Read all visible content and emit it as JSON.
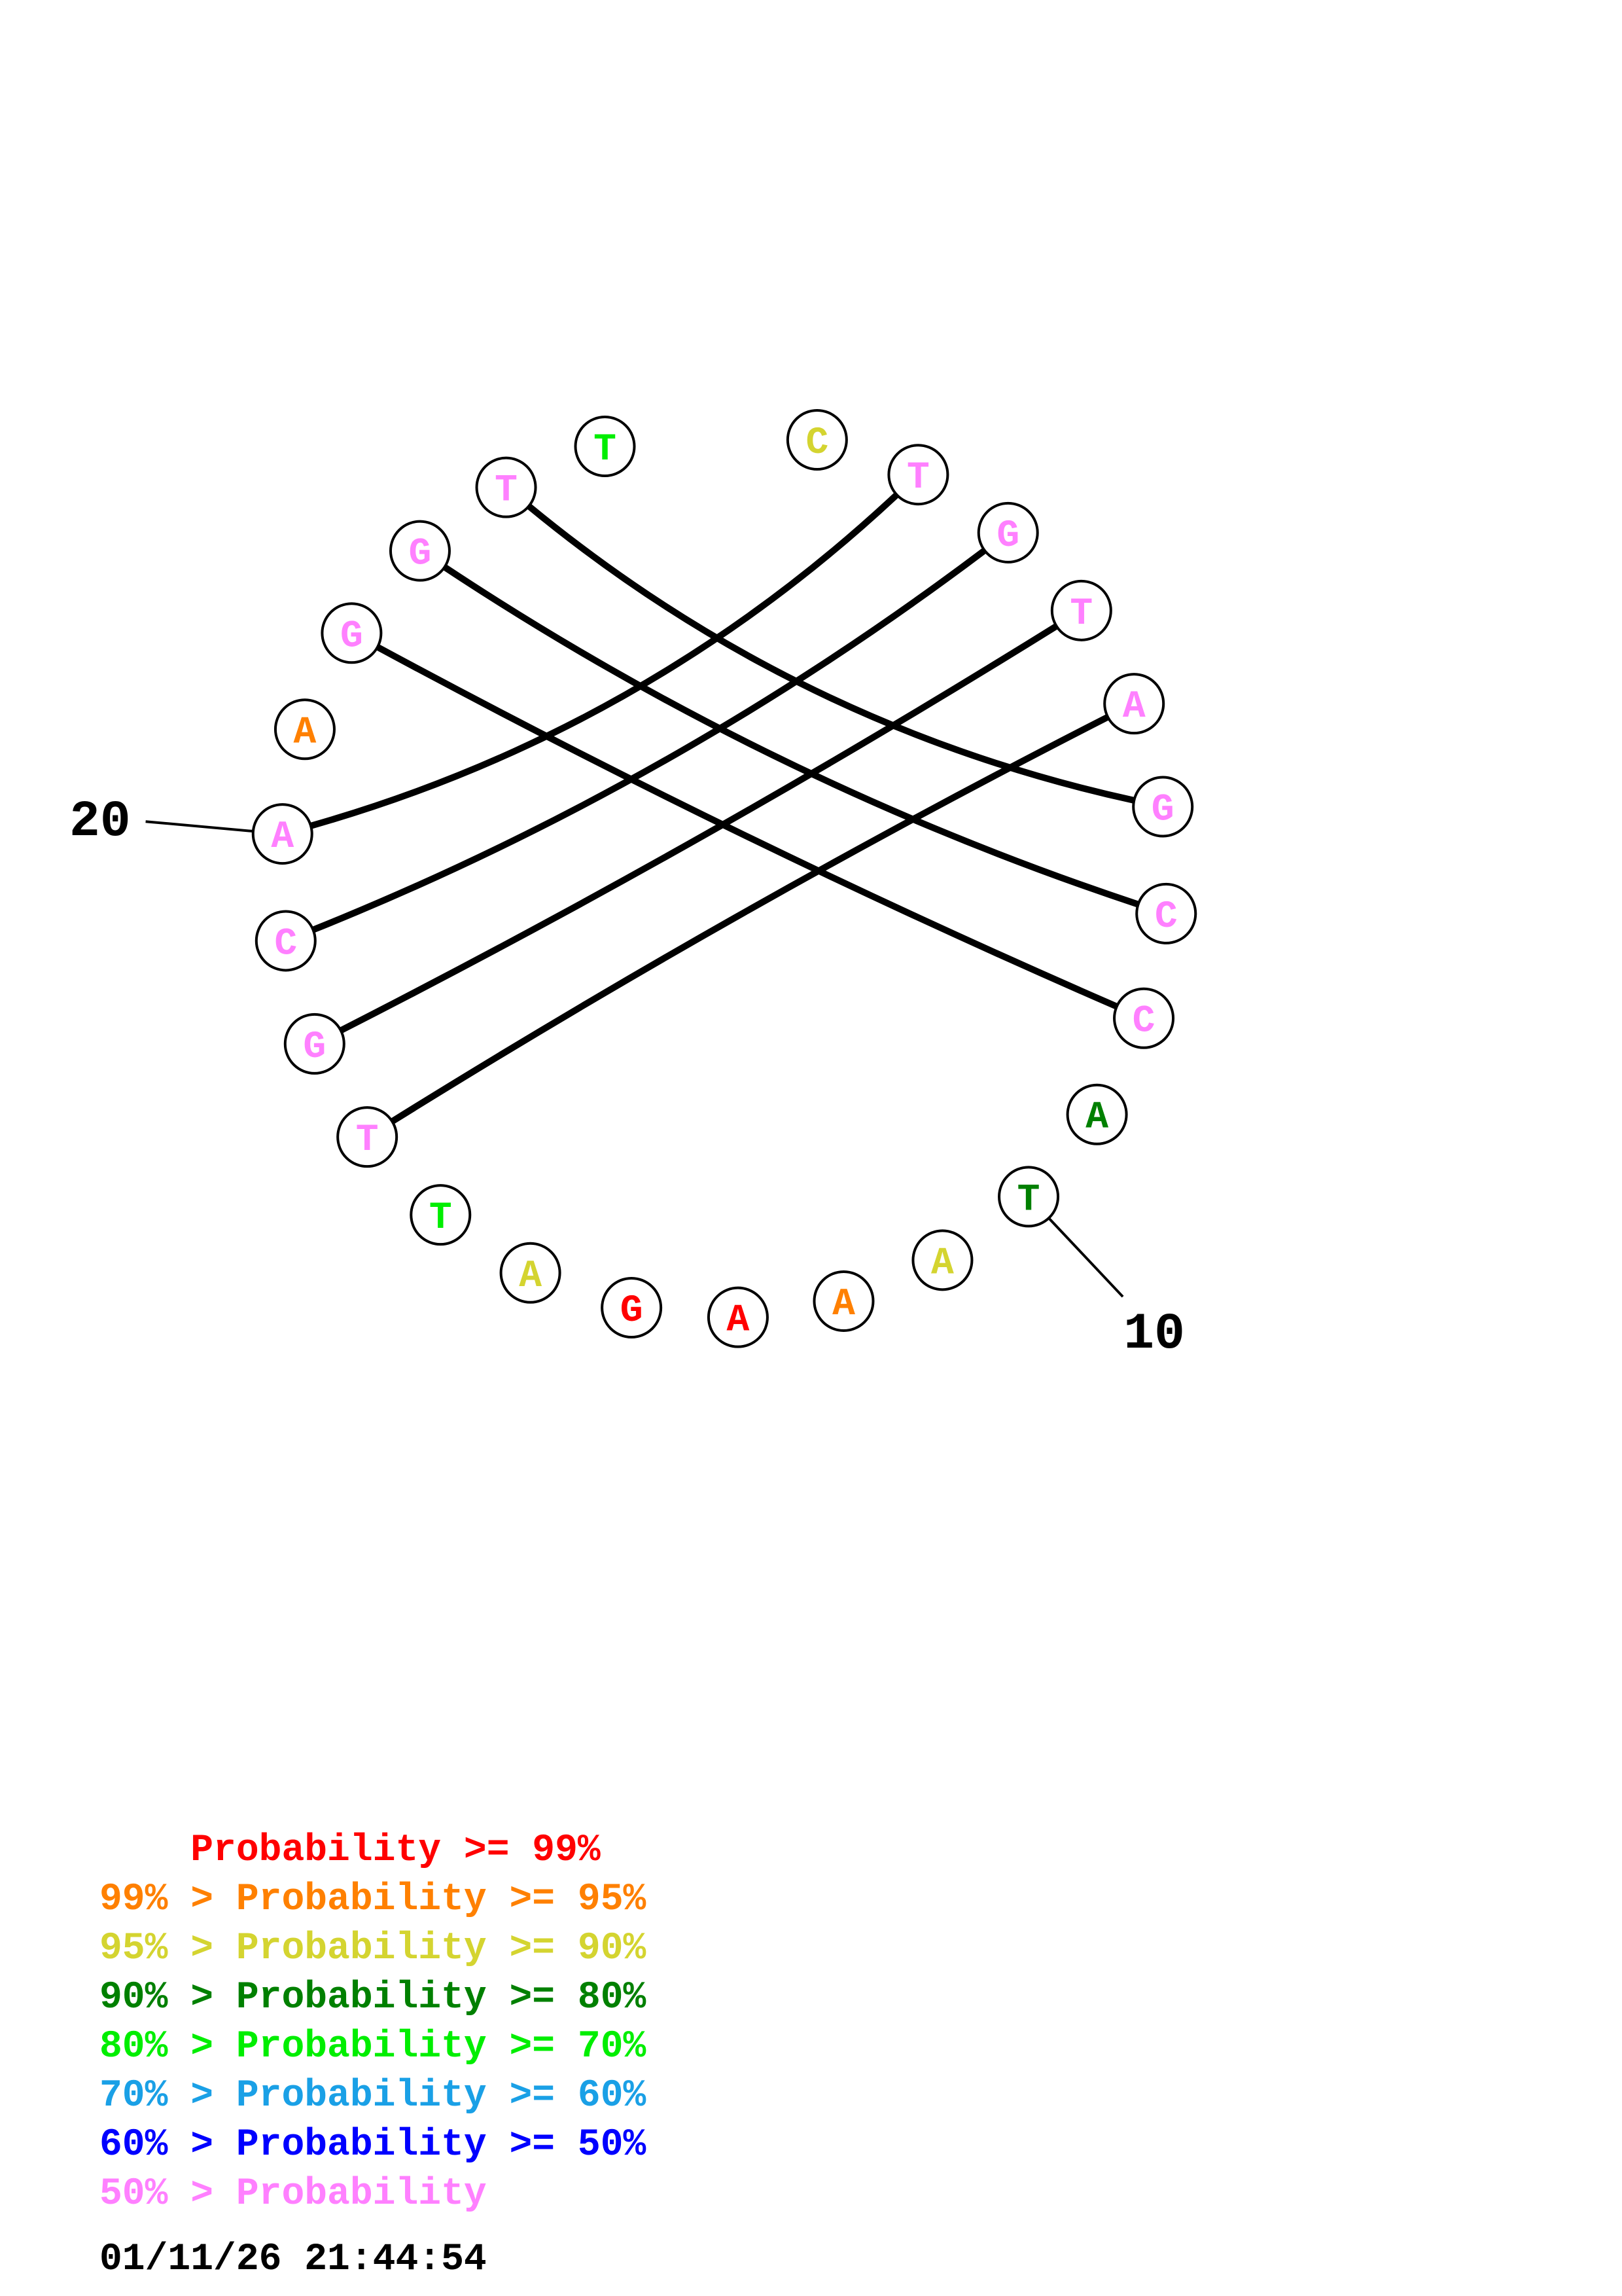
{
  "colors": {
    "p99": "#ff0000",
    "p95": "#ff8000",
    "p90": "#d4d430",
    "p80": "#008000",
    "p70": "#00ee00",
    "p60": "#1aa0e6",
    "p50": "#0000ff",
    "plow": "#ff80ff"
  },
  "nucleotides": [
    {
      "idx": 1,
      "letter": "C",
      "color": "p90"
    },
    {
      "idx": 2,
      "letter": "T",
      "color": "plow"
    },
    {
      "idx": 3,
      "letter": "G",
      "color": "plow"
    },
    {
      "idx": 4,
      "letter": "T",
      "color": "plow"
    },
    {
      "idx": 5,
      "letter": "A",
      "color": "plow"
    },
    {
      "idx": 6,
      "letter": "G",
      "color": "plow"
    },
    {
      "idx": 7,
      "letter": "C",
      "color": "plow"
    },
    {
      "idx": 8,
      "letter": "C",
      "color": "plow"
    },
    {
      "idx": 9,
      "letter": "A",
      "color": "p80"
    },
    {
      "idx": 10,
      "letter": "T",
      "color": "p80"
    },
    {
      "idx": 11,
      "letter": "A",
      "color": "p90"
    },
    {
      "idx": 12,
      "letter": "A",
      "color": "p95"
    },
    {
      "idx": 13,
      "letter": "A",
      "color": "p99"
    },
    {
      "idx": 14,
      "letter": "G",
      "color": "p99"
    },
    {
      "idx": 15,
      "letter": "A",
      "color": "p90"
    },
    {
      "idx": 16,
      "letter": "T",
      "color": "p70"
    },
    {
      "idx": 17,
      "letter": "T",
      "color": "plow"
    },
    {
      "idx": 18,
      "letter": "G",
      "color": "plow"
    },
    {
      "idx": 19,
      "letter": "C",
      "color": "plow"
    },
    {
      "idx": 20,
      "letter": "A",
      "color": "plow"
    },
    {
      "idx": 21,
      "letter": "A",
      "color": "p95"
    },
    {
      "idx": 22,
      "letter": "G",
      "color": "plow"
    },
    {
      "idx": 23,
      "letter": "G",
      "color": "plow"
    },
    {
      "idx": 24,
      "letter": "T",
      "color": "plow"
    },
    {
      "idx": 25,
      "letter": "T",
      "color": "p70"
    }
  ],
  "pairs": [
    [
      2,
      20
    ],
    [
      3,
      19
    ],
    [
      4,
      18
    ],
    [
      5,
      17
    ],
    [
      6,
      24
    ],
    [
      7,
      23
    ],
    [
      8,
      22
    ]
  ],
  "position_labels": [
    {
      "idx": 10,
      "text": "10"
    },
    {
      "idx": 20,
      "text": "20"
    }
  ],
  "legend": [
    {
      "prefix": "    ",
      "text": "    Probability >= 99%",
      "color": "p99"
    },
    {
      "prefix": "",
      "text": "99% > Probability >= 95%",
      "color": "p95"
    },
    {
      "prefix": "",
      "text": "95% > Probability >= 90%",
      "color": "p90"
    },
    {
      "prefix": "",
      "text": "90% > Probability >= 80%",
      "color": "p80"
    },
    {
      "prefix": "",
      "text": "80% > Probability >= 70%",
      "color": "p70"
    },
    {
      "prefix": "",
      "text": "70% > Probability >= 60%",
      "color": "p60"
    },
    {
      "prefix": "",
      "text": "60% > Probability >= 50%",
      "color": "p50"
    },
    {
      "prefix": "",
      "text": "50% > Probability",
      "color": "plow"
    }
  ],
  "timestamp": "01/11/26 21:44:54"
}
